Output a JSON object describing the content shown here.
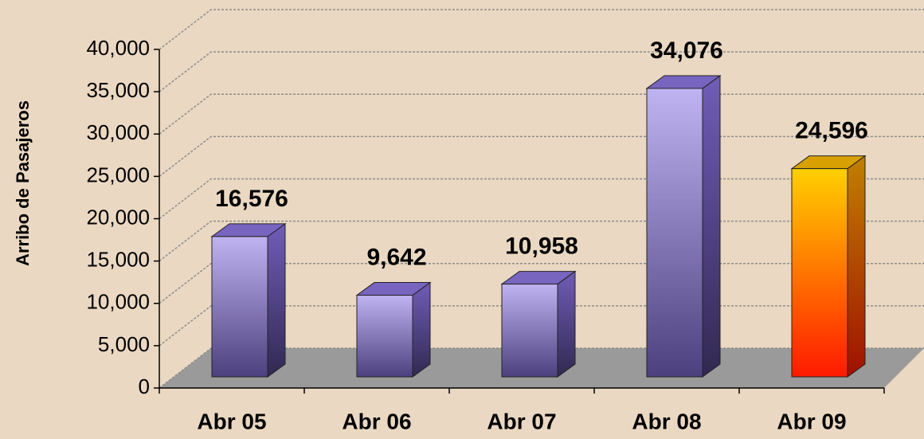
{
  "chart_data": {
    "type": "bar3d",
    "y_axis_label": "Arribo de Pasajeros",
    "categories": [
      "Abr 05",
      "Abr 06",
      "Abr 07",
      "Abr 08",
      "Abr 09"
    ],
    "values": [
      16576,
      9642,
      10958,
      34076,
      24596
    ],
    "value_labels": [
      "16,576",
      "9,642",
      "10,958",
      "34,076",
      "24,596"
    ],
    "colors": [
      "#8c74e6",
      "#8c74e6",
      "#8c74e6",
      "#8c74e6",
      "#f08a00"
    ],
    "ylim": [
      0,
      40000
    ],
    "yticks": [
      0,
      {
        "value": 5000,
        "label": "5,000"
      },
      {
        "value": 10000,
        "label": "10,000"
      },
      {
        "value": 15000,
        "label": "15,000"
      },
      {
        "value": 20000,
        "label": "20,000"
      },
      {
        "value": 25000,
        "label": "25,000"
      },
      {
        "value": 30000,
        "label": "30,000"
      },
      {
        "value": 35000,
        "label": "35,000"
      },
      {
        "value": 40000,
        "label": "40,000"
      }
    ],
    "grid": true
  }
}
